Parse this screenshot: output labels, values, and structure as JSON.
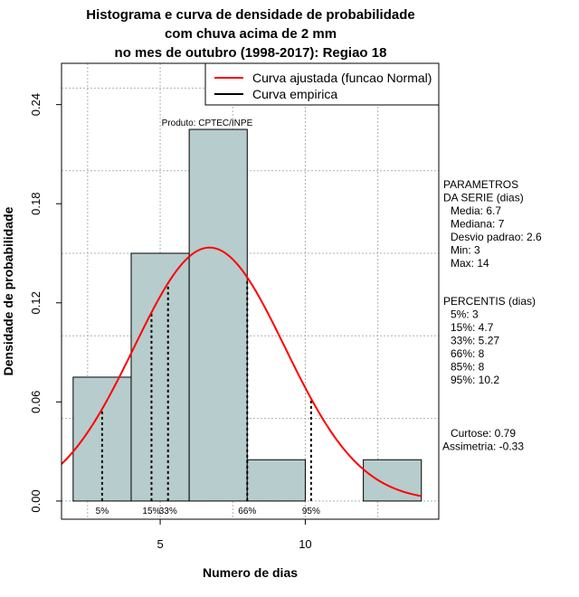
{
  "chart_data": {
    "type": "histogram",
    "title_lines": [
      "Histograma e curva de densidade de probabilidade",
      "com chuva acima de 2 mm",
      "no mes de outubro (1998-2017): Regiao 18"
    ],
    "xlabel": "Numero de dias",
    "ylabel": "Densidade de probabilidade",
    "xlim": [
      1.6,
      14.6
    ],
    "ylim": [
      -0.011,
      0.265
    ],
    "x_ticks": [
      5,
      10
    ],
    "y_ticks": [
      0.0,
      0.06,
      0.12,
      0.18,
      0.24
    ],
    "y_tick_labels": [
      "0.00",
      "0.06",
      "0.12",
      "0.18",
      "0.24"
    ],
    "grid": true,
    "bins": [
      {
        "from": 2,
        "to": 4,
        "density": 0.075
      },
      {
        "from": 4,
        "to": 6,
        "density": 0.15
      },
      {
        "from": 6,
        "to": 8,
        "density": 0.225
      },
      {
        "from": 8,
        "to": 10,
        "density": 0.025
      },
      {
        "from": 10,
        "to": 12,
        "density": 0.0
      },
      {
        "from": 12,
        "to": 14,
        "density": 0.025
      }
    ],
    "bar_color": "#b7cccc",
    "curve_color": "#ff0000",
    "normal_fit": {
      "mean": 6.7,
      "sd": 2.6
    },
    "percentile_lines": [
      {
        "label": "5%",
        "x": 3
      },
      {
        "label": "15%",
        "x": 4.7
      },
      {
        "label": "33%",
        "x": 5.27
      },
      {
        "label": "66%",
        "x": 8
      },
      {
        "label": "95%",
        "x": 10.2
      }
    ],
    "source_note": "Produto: CPTEC/INPE",
    "legend": {
      "position": "top-right",
      "entries": [
        {
          "label": "Curva ajustada (funcao Normal)",
          "color": "#ff0000"
        },
        {
          "label": "Curva empirica",
          "color": "#000000"
        }
      ]
    },
    "parameters": {
      "heading_lines": [
        "PARAMETROS",
        "DA SERIE (dias)"
      ],
      "items": [
        "Media: 6.7",
        "Mediana: 7",
        "Desvio padrao: 2.6",
        "Min: 3",
        "Max: 14"
      ]
    },
    "percentiles": {
      "heading": "PERCENTIS (dias)",
      "items": [
        "5%: 3",
        "15%: 4.7",
        "33%: 5.27",
        "66%: 8",
        "85%: 8",
        "95%: 10.2"
      ]
    },
    "shape": {
      "items": [
        "Curtose: 0.79",
        "Assimetria: -0.33"
      ]
    }
  }
}
